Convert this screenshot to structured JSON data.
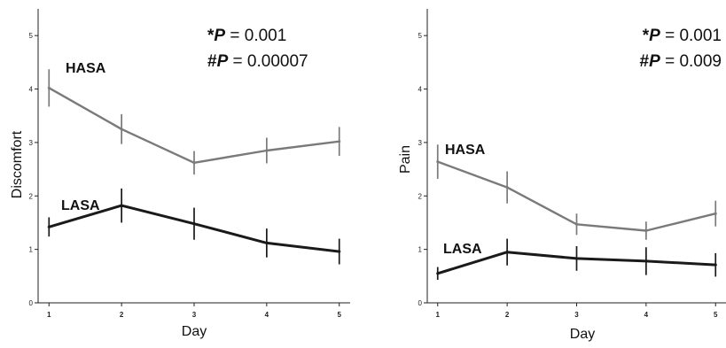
{
  "chart_data": [
    {
      "type": "line",
      "xlabel": "Day",
      "ylabel": "Discomfort",
      "x": [
        1,
        2,
        3,
        4,
        5
      ],
      "xticks": [
        "1",
        "2",
        "3",
        "4",
        "5"
      ],
      "yticks": [
        "0",
        "1",
        "2",
        "3",
        "4",
        "5"
      ],
      "xlim": [
        0.85,
        5.15
      ],
      "ylim": [
        0,
        5.5
      ],
      "grid": false,
      "legend": "inline labels",
      "series": [
        {
          "name": "HASA",
          "color": "#7a7a7a",
          "values": [
            4.02,
            3.25,
            2.62,
            2.85,
            3.02
          ],
          "error": [
            0.35,
            0.28,
            0.22,
            0.24,
            0.27
          ]
        },
        {
          "name": "LASA",
          "color": "#1a1a1a",
          "values": [
            1.42,
            1.82,
            1.48,
            1.12,
            0.96
          ],
          "error": [
            0.18,
            0.32,
            0.3,
            0.27,
            0.24
          ]
        }
      ],
      "annotations": [
        {
          "symbol": "*",
          "p_label": "P",
          "value": " = 0.001"
        },
        {
          "symbol": "#",
          "p_label": "P",
          "value": " = 0.00007"
        }
      ]
    },
    {
      "type": "line",
      "xlabel": "Day",
      "ylabel": "Pain",
      "x": [
        1,
        2,
        3,
        4,
        5
      ],
      "xticks": [
        "1",
        "2",
        "3",
        "4",
        "5"
      ],
      "yticks": [
        "0",
        "1",
        "2",
        "3",
        "4",
        "5"
      ],
      "xlim": [
        0.85,
        5.15
      ],
      "ylim": [
        0,
        5.5
      ],
      "grid": false,
      "legend": "inline labels",
      "series": [
        {
          "name": "HASA",
          "color": "#7a7a7a",
          "values": [
            2.64,
            2.16,
            1.47,
            1.35,
            1.67
          ],
          "error": [
            0.32,
            0.3,
            0.2,
            0.17,
            0.24
          ]
        },
        {
          "name": "LASA",
          "color": "#1a1a1a",
          "values": [
            0.55,
            0.95,
            0.83,
            0.78,
            0.71
          ],
          "error": [
            0.12,
            0.25,
            0.23,
            0.26,
            0.22
          ]
        }
      ],
      "annotations": [
        {
          "symbol": "*",
          "p_label": "P",
          "value": " = 0.001"
        },
        {
          "symbol": "#",
          "p_label": "P",
          "value": " = 0.009"
        }
      ]
    }
  ]
}
